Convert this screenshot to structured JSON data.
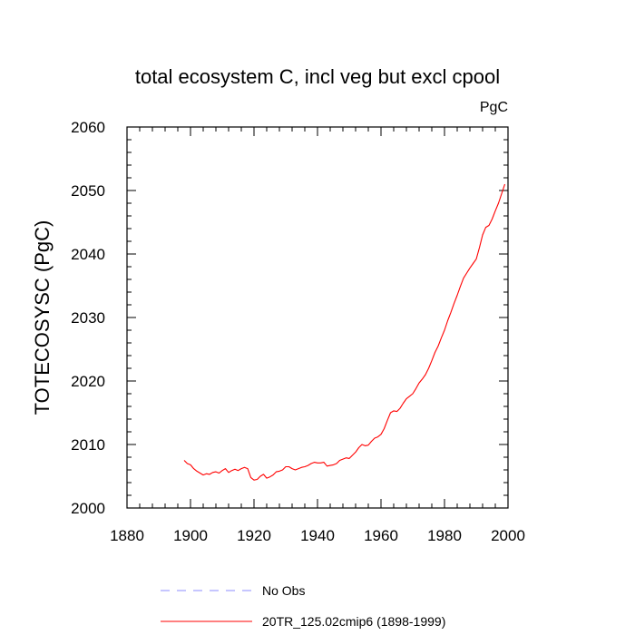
{
  "chart_data": {
    "type": "line",
    "title": "total ecosystem C, incl veg but excl cpool",
    "units": "PgC",
    "xlabel": "",
    "ylabel": "TOTECOSYSC  (PgC)",
    "xlim": [
      1880,
      2000
    ],
    "ylim": [
      2000,
      2060
    ],
    "xticks": [
      1880,
      1900,
      1920,
      1940,
      1960,
      1980,
      2000
    ],
    "yticks": [
      2000,
      2010,
      2020,
      2030,
      2040,
      2050,
      2060
    ],
    "grid": false,
    "legend_position": "bottom",
    "legend": [
      {
        "label": "No Obs",
        "style": "dashed",
        "color": "#8c8cff"
      },
      {
        "label": "20TR_125.02cmip6 (1898-1999)",
        "style": "solid",
        "color": "#ff0000"
      }
    ],
    "series": [
      {
        "name": "20TR_125.02cmip6 (1898-1999)",
        "color": "#ff0000",
        "x": [
          1898,
          1899,
          1900,
          1901,
          1902,
          1903,
          1904,
          1905,
          1906,
          1907,
          1908,
          1909,
          1910,
          1911,
          1912,
          1913,
          1914,
          1915,
          1916,
          1917,
          1918,
          1919,
          1920,
          1921,
          1922,
          1923,
          1924,
          1925,
          1926,
          1927,
          1928,
          1929,
          1930,
          1931,
          1932,
          1933,
          1934,
          1935,
          1936,
          1937,
          1938,
          1939,
          1940,
          1941,
          1942,
          1943,
          1944,
          1945,
          1946,
          1947,
          1948,
          1949,
          1950,
          1951,
          1952,
          1953,
          1954,
          1955,
          1956,
          1957,
          1958,
          1959,
          1960,
          1961,
          1962,
          1963,
          1964,
          1965,
          1966,
          1967,
          1968,
          1969,
          1970,
          1971,
          1972,
          1973,
          1974,
          1975,
          1976,
          1977,
          1978,
          1979,
          1980,
          1981,
          1982,
          1983,
          1984,
          1985,
          1986,
          1987,
          1988,
          1989,
          1990,
          1991,
          1992,
          1993,
          1994,
          1995,
          1996,
          1997,
          1998,
          1999
        ],
        "values": [
          2007.5,
          2007.0,
          2006.8,
          2006.2,
          2005.8,
          2005.5,
          2005.2,
          2005.4,
          2005.3,
          2005.6,
          2005.7,
          2005.5,
          2005.9,
          2006.2,
          2005.6,
          2005.9,
          2006.1,
          2005.9,
          2006.2,
          2006.4,
          2006.2,
          2004.8,
          2004.4,
          2004.5,
          2005.0,
          2005.3,
          2004.7,
          2004.9,
          2005.2,
          2005.7,
          2005.8,
          2006.0,
          2006.5,
          2006.5,
          2006.2,
          2006.0,
          2006.2,
          2006.4,
          2006.5,
          2006.7,
          2007.0,
          2007.2,
          2007.1,
          2007.1,
          2007.2,
          2006.6,
          2006.7,
          2006.8,
          2007.0,
          2007.5,
          2007.7,
          2007.9,
          2007.8,
          2008.3,
          2008.8,
          2009.5,
          2010.0,
          2009.8,
          2009.9,
          2010.5,
          2011.0,
          2011.2,
          2011.6,
          2012.5,
          2013.8,
          2015.0,
          2015.3,
          2015.2,
          2015.7,
          2016.5,
          2017.2,
          2017.6,
          2018.0,
          2018.8,
          2019.7,
          2020.3,
          2021.0,
          2022.0,
          2023.2,
          2024.5,
          2025.5,
          2026.8,
          2028.0,
          2029.5,
          2030.8,
          2032.2,
          2033.5,
          2034.9,
          2036.2,
          2037.0,
          2037.8,
          2038.5,
          2039.2,
          2041.0,
          2043.0,
          2044.2,
          2044.5,
          2045.5,
          2046.8,
          2048.0,
          2049.5,
          2051.0
        ]
      }
    ]
  }
}
